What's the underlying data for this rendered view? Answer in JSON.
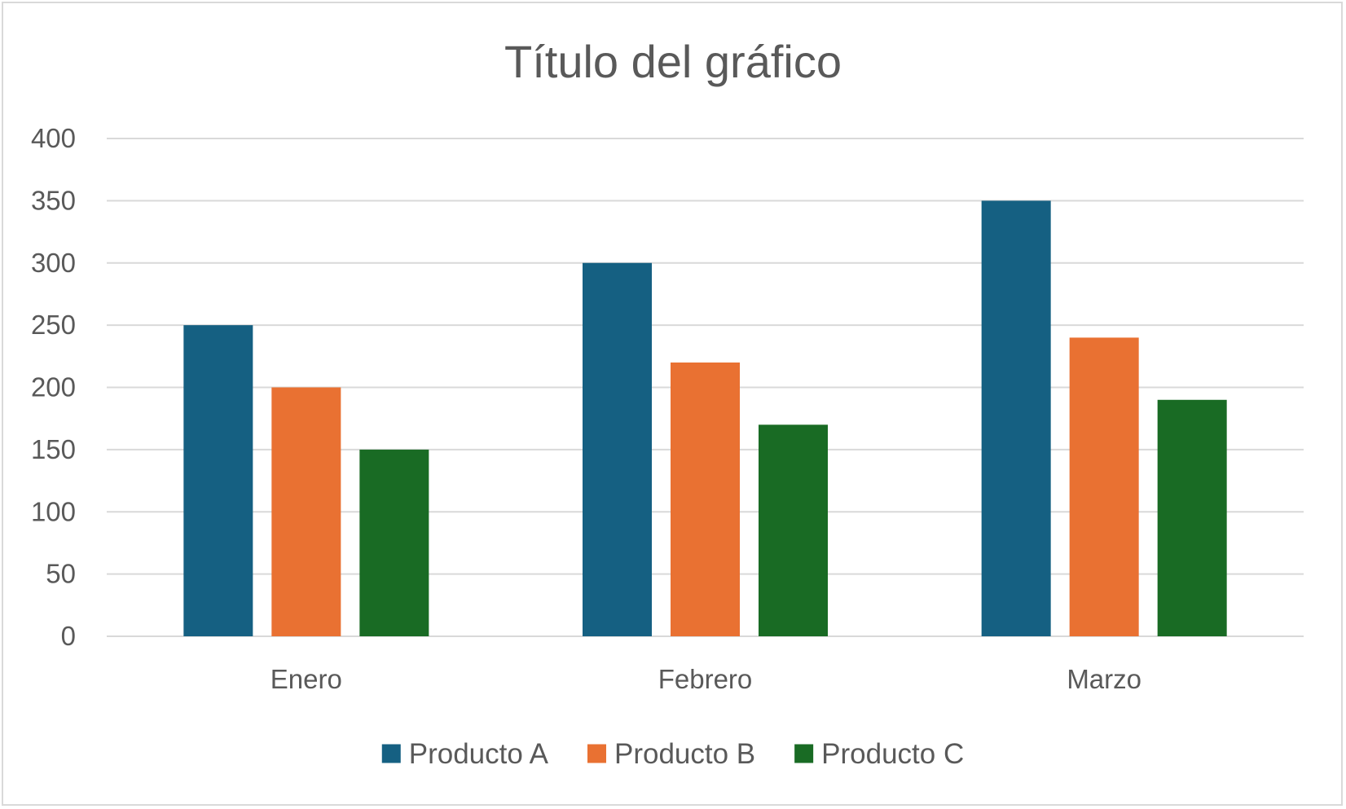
{
  "chart_data": {
    "type": "bar",
    "title": "Título del gráfico",
    "xlabel": "",
    "ylabel": "",
    "categories": [
      "Enero",
      "Febrero",
      "Marzo"
    ],
    "series": [
      {
        "name": "Producto A",
        "color": "#156082",
        "values": [
          250,
          300,
          350
        ]
      },
      {
        "name": "Producto B",
        "color": "#E97132",
        "values": [
          200,
          220,
          240
        ]
      },
      {
        "name": "Producto C",
        "color": "#196B24",
        "values": [
          150,
          170,
          190
        ]
      }
    ],
    "ylim": [
      0,
      400
    ],
    "yticks": [
      "0",
      "50",
      "100",
      "150",
      "200",
      "250",
      "300",
      "350",
      "400"
    ],
    "grid": true,
    "legend_position": "bottom",
    "gridline_color": "#d9d9d9"
  }
}
